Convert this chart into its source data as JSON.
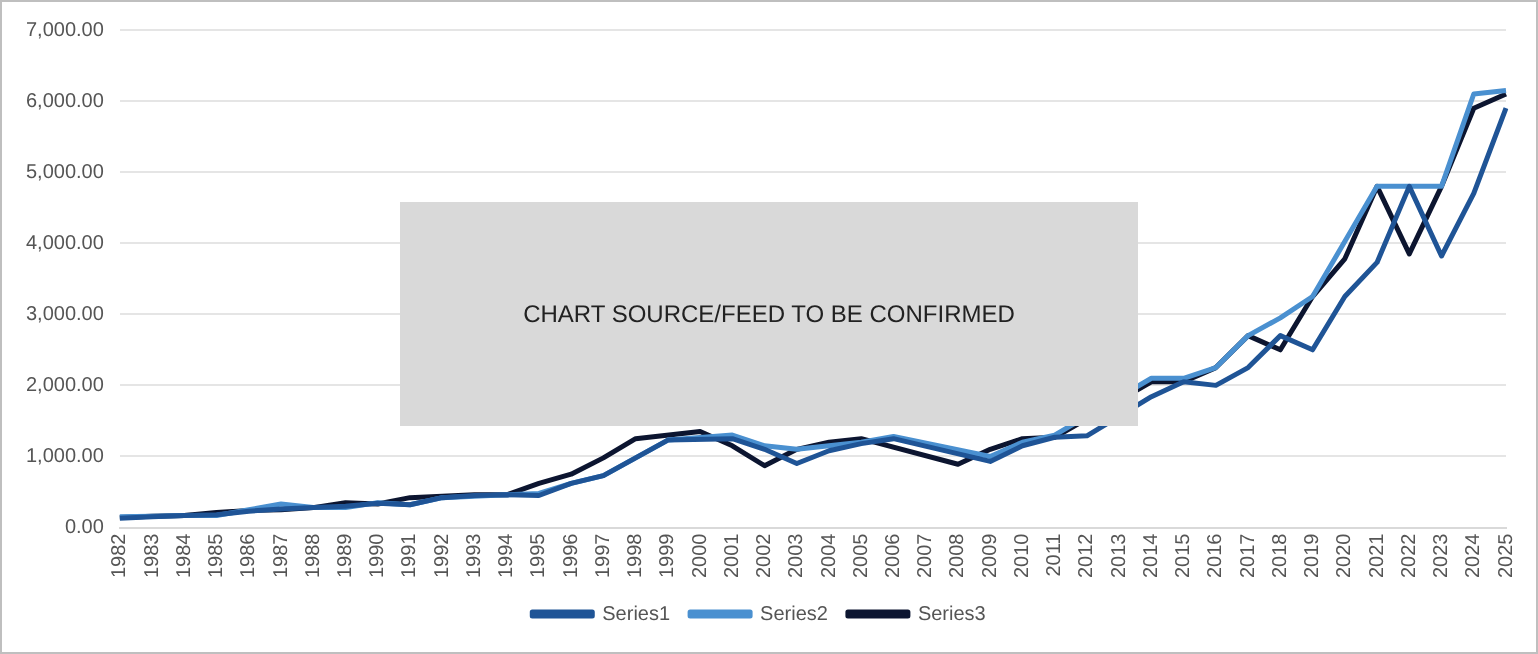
{
  "chart_data": {
    "type": "line",
    "categories": [
      "1982",
      "1983",
      "1984",
      "1985",
      "1986",
      "1987",
      "1988",
      "1989",
      "1990",
      "1991",
      "1992",
      "1993",
      "1994",
      "1995",
      "1996",
      "1997",
      "1998",
      "1999",
      "2000",
      "2001",
      "2002",
      "2003",
      "2004",
      "2005",
      "2006",
      "2007",
      "2008",
      "2009",
      "2010",
      "2011",
      "2012",
      "2013",
      "2014",
      "2015",
      "2016",
      "2017",
      "2018",
      "2019",
      "2020",
      "2021",
      "2022",
      "2023",
      "2024",
      "2025"
    ],
    "series": [
      {
        "name": "Series1",
        "color": "#1f5496",
        "values": [
          130,
          150,
          170,
          180,
          230,
          260,
          280,
          300,
          340,
          320,
          420,
          450,
          460,
          450,
          620,
          730,
          980,
          1230,
          null,
          1250,
          1100,
          900,
          1080,
          1180,
          1250,
          null,
          null,
          930,
          1150,
          1270,
          1290,
          null,
          1840,
          2050,
          2000,
          2250,
          2700,
          2500,
          3250,
          3730,
          4800,
          3820,
          4700,
          5900
        ]
      },
      {
        "name": "Series2",
        "color": "#4a90d0",
        "values": [
          150,
          160,
          170,
          170,
          250,
          330,
          280,
          280,
          350,
          320,
          420,
          440,
          460,
          480,
          620,
          730,
          980,
          1230,
          null,
          1300,
          1150,
          1100,
          1150,
          1200,
          1280,
          null,
          null,
          1000,
          1200,
          1300,
          null,
          null,
          2100,
          2100,
          2250,
          2700,
          2950,
          3250,
          null,
          4800,
          4800,
          4800,
          6100,
          6150
        ]
      },
      {
        "name": "Series3",
        "color": "#0c1530",
        "values": [
          140,
          160,
          170,
          210,
          240,
          250,
          280,
          350,
          330,
          420,
          440,
          460,
          460,
          620,
          750,
          980,
          1250,
          null,
          1350,
          1150,
          870,
          1100,
          1200,
          1250,
          null,
          null,
          890,
          1100,
          1250,
          1270,
          null,
          null,
          2050,
          2050,
          2250,
          2700,
          2500,
          3250,
          3780,
          4800,
          3850,
          4800,
          5900,
          6100
        ]
      }
    ],
    "ylim": [
      0,
      7000
    ],
    "yticks": [
      {
        "value": 0,
        "label": "0.00"
      },
      {
        "value": 1000,
        "label": "1,000.00"
      },
      {
        "value": 2000,
        "label": "2,000.00"
      },
      {
        "value": 3000,
        "label": "3,000.00"
      },
      {
        "value": 4000,
        "label": "4,000.00"
      },
      {
        "value": 5000,
        "label": "5,000.00"
      },
      {
        "value": 6000,
        "label": "6,000.00"
      },
      {
        "value": 7000,
        "label": "7,000.00"
      }
    ],
    "grid": "y",
    "legend": "bottom",
    "marker": "none",
    "line_style": "solid",
    "annotations": [
      "CHART SOURCE/FEED TO BE CONFIRMED"
    ]
  }
}
